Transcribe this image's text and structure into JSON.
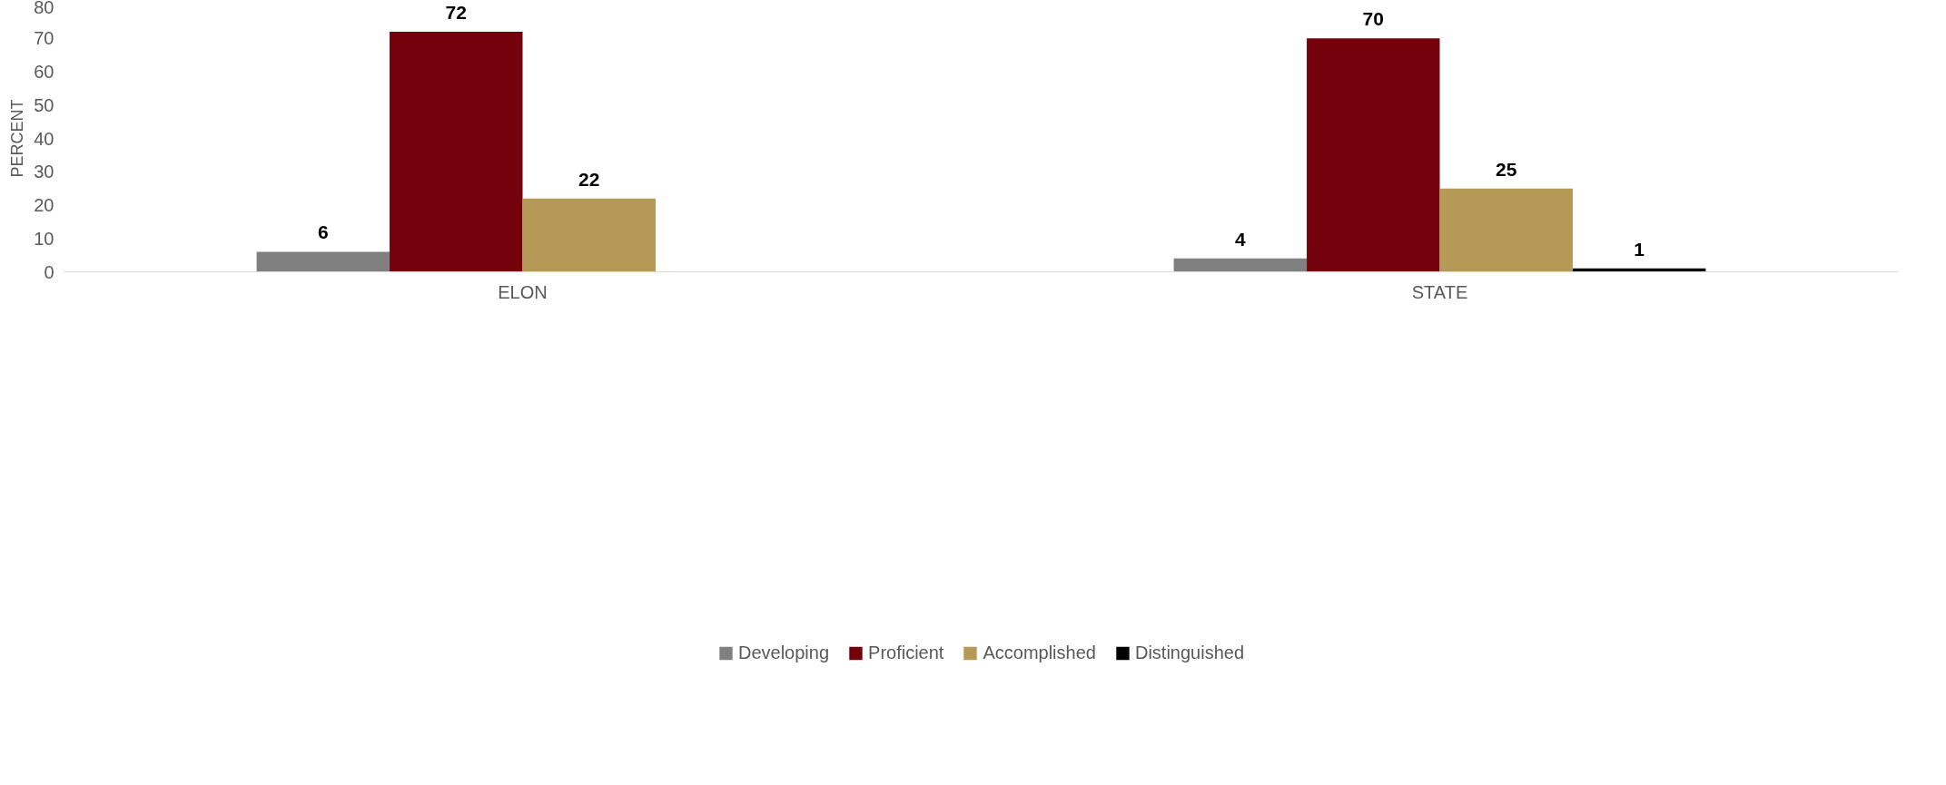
{
  "chart_data": {
    "type": "bar",
    "ylabel": "PERCENT",
    "categories": [
      "ELON",
      "STATE"
    ],
    "series": [
      {
        "name": "Developing",
        "color": "#808080",
        "values": [
          6,
          4
        ]
      },
      {
        "name": "Proficient",
        "color": "#73000a",
        "values": [
          72,
          70
        ]
      },
      {
        "name": "Accomplished",
        "color": "#b59a57",
        "values": [
          22,
          25
        ]
      },
      {
        "name": "Distinguished",
        "color": "#000000",
        "values": [
          null,
          1
        ]
      }
    ],
    "ylim": [
      0,
      80
    ],
    "yticks": [
      0,
      10,
      20,
      30,
      40,
      50,
      60,
      70,
      80
    ],
    "data_labels": true,
    "legend": "bottom",
    "grid": false
  }
}
